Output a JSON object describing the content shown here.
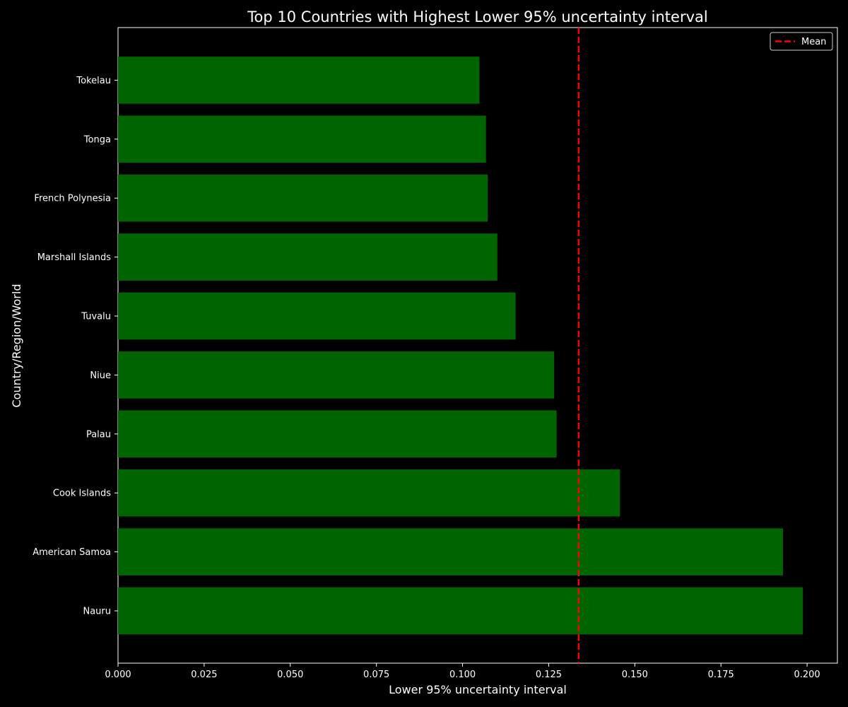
{
  "chart_data": {
    "type": "bar",
    "orientation": "horizontal",
    "title": "Top 10 Countries with Highest Lower 95% uncertainty interval",
    "xlabel": "Lower 95% uncertainty interval",
    "ylabel": "Country/Region/World",
    "categories": [
      "Nauru",
      "American Samoa",
      "Cook Islands",
      "Palau",
      "Niue",
      "Tuvalu",
      "Marshall Islands",
      "French Polynesia",
      "Tonga",
      "Tokelau"
    ],
    "values": [
      0.1988,
      0.193,
      0.1457,
      0.1273,
      0.1266,
      0.1154,
      0.1101,
      0.1073,
      0.1068,
      0.1049
    ],
    "xlim": [
      0,
      0.2088
    ],
    "xticks": [
      "0.000",
      "0.025",
      "0.050",
      "0.075",
      "0.100",
      "0.125",
      "0.150",
      "0.175",
      "0.200"
    ],
    "reference_line": {
      "label": "Mean",
      "value": 0.1337,
      "color": "#ff0000",
      "style": "dashed"
    },
    "legend": {
      "position": "top-right",
      "entries": [
        "Mean"
      ]
    },
    "bar_color": "#006400",
    "background": "#000000",
    "foreground": "#ffffff",
    "grid": false
  }
}
